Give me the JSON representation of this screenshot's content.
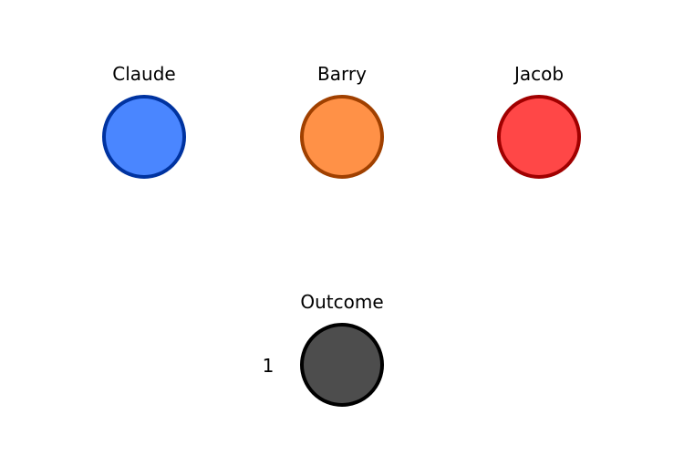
{
  "nodes": [
    {
      "id": "claude",
      "label": "Claude",
      "fill": "#4a86ff",
      "stroke": "#0033a0"
    },
    {
      "id": "barry",
      "label": "Barry",
      "fill": "#ff9147",
      "stroke": "#a04000"
    },
    {
      "id": "jacob",
      "label": "Jacob",
      "fill": "#ff4747",
      "stroke": "#a00000"
    },
    {
      "id": "outcome",
      "label": "Outcome",
      "fill": "#4d4d4d",
      "stroke": "#000000",
      "side_value": "1"
    }
  ]
}
